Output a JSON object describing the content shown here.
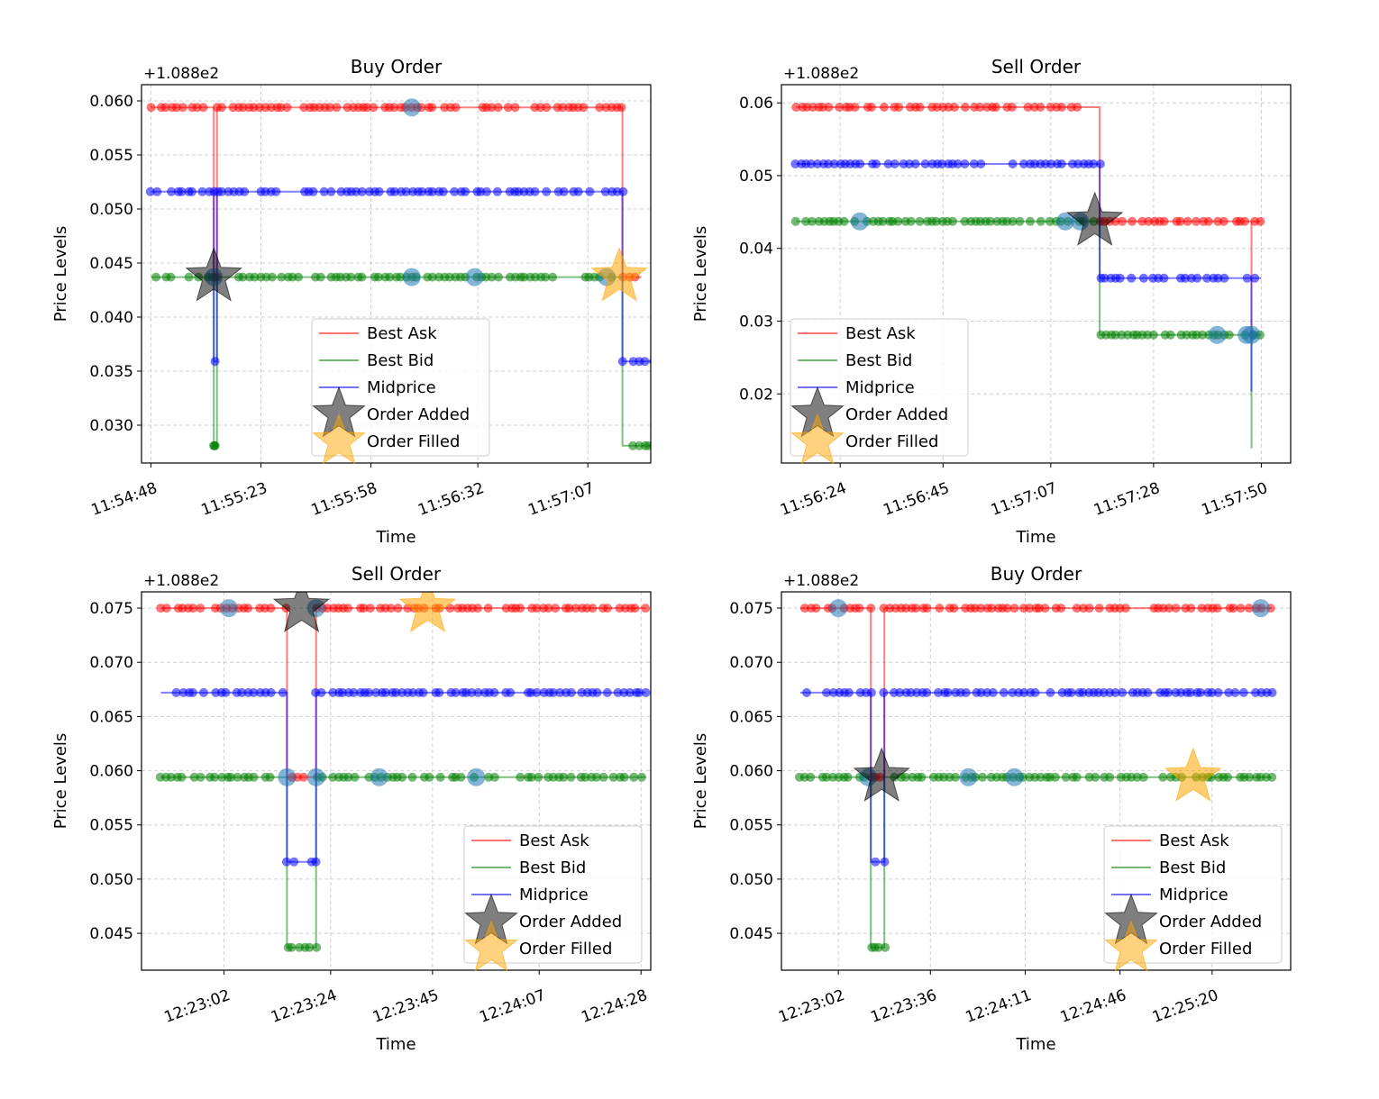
{
  "colors": {
    "ask": "#ff0000",
    "bid": "#008000",
    "mid": "#0000ff",
    "event_marker": "#1f77b4",
    "order_added": "#000000",
    "order_filled": "#ffa500"
  },
  "chart_data": [
    {
      "type": "line",
      "title": "Buy Order",
      "xlabel": "Time",
      "ylabel": "Price Levels",
      "y_offset_label": "+1.088e2",
      "y_offset": 108.8,
      "xlim": [
        "11:54:45",
        "11:57:27"
      ],
      "ylim": [
        0.0265,
        0.0615
      ],
      "xticks": [
        "11:54:48",
        "11:55:23",
        "11:55:58",
        "11:56:32",
        "11:57:07"
      ],
      "yticks": [
        "0.030",
        "0.035",
        "0.040",
        "0.045",
        "0.050",
        "0.055",
        "0.060"
      ],
      "grid": true,
      "legend": {
        "location": "lower-center",
        "entries": [
          "Best Ask",
          "Best Bid",
          "Midprice",
          "Order Added",
          "Order Filled"
        ]
      },
      "series": [
        {
          "name": "Best Ask",
          "points": [
            [
              "11:54:48",
              0.0594
            ],
            [
              "11:55:08",
              0.0594
            ],
            [
              "11:55:08",
              0.0437
            ],
            [
              "11:55:09",
              0.0437
            ],
            [
              "11:55:09",
              0.0594
            ],
            [
              "11:57:18",
              0.0594
            ],
            [
              "11:57:18",
              0.0437
            ],
            [
              "11:57:24",
              0.0437
            ]
          ]
        },
        {
          "name": "Best Bid",
          "points": [
            [
              "11:54:48",
              0.0437
            ],
            [
              "11:55:08",
              0.0437
            ],
            [
              "11:55:08",
              0.0281
            ],
            [
              "11:55:09",
              0.0281
            ],
            [
              "11:55:09",
              0.0437
            ],
            [
              "11:57:18",
              0.0437
            ],
            [
              "11:57:18",
              0.0281
            ],
            [
              "11:57:30",
              0.0281
            ]
          ]
        },
        {
          "name": "Midprice",
          "points": [
            [
              "11:54:48",
              0.0516
            ],
            [
              "11:55:08",
              0.0516
            ],
            [
              "11:55:08",
              0.0359
            ],
            [
              "11:55:09",
              0.0359
            ],
            [
              "11:55:09",
              0.0516
            ],
            [
              "11:57:18",
              0.0516
            ],
            [
              "11:57:18",
              0.0359
            ],
            [
              "11:57:30",
              0.0359
            ]
          ]
        }
      ],
      "order_added": [
        [
          "11:55:08",
          0.0437
        ]
      ],
      "order_filled": [
        [
          "11:57:17",
          0.0437
        ]
      ],
      "event_markers": [
        [
          "11:55:08",
          0.0437
        ],
        [
          "11:56:11",
          0.0594
        ],
        [
          "11:56:11",
          0.0437
        ],
        [
          "11:56:31",
          0.0437
        ],
        [
          "11:57:13",
          0.0437
        ]
      ]
    },
    {
      "type": "line",
      "title": "Sell Order",
      "xlabel": "Time",
      "ylabel": "Price Levels",
      "y_offset_label": "+1.088e2",
      "y_offset": 108.8,
      "xlim": [
        "11:56:12",
        "11:57:56"
      ],
      "ylim": [
        0.0105,
        0.0625
      ],
      "xticks": [
        "11:56:24",
        "11:56:45",
        "11:57:07",
        "11:57:28",
        "11:57:50"
      ],
      "yticks": [
        "0.02",
        "0.03",
        "0.04",
        "0.05",
        "0.06"
      ],
      "grid": true,
      "legend": {
        "location": "lower-left",
        "entries": [
          "Best Ask",
          "Best Bid",
          "Midprice",
          "Order Added",
          "Order Filled"
        ]
      },
      "series": [
        {
          "name": "Best Ask",
          "points": [
            [
              "11:56:15",
              0.0594
            ],
            [
              "11:57:17",
              0.0594
            ],
            [
              "11:57:17",
              0.0437
            ],
            [
              "11:57:48",
              0.0437
            ],
            [
              "11:57:48",
              0.0281
            ],
            [
              "11:57:48",
              0.0437
            ],
            [
              "11:57:50",
              0.0437
            ]
          ]
        },
        {
          "name": "Best Bid",
          "points": [
            [
              "11:56:15",
              0.0437
            ],
            [
              "11:57:17",
              0.0437
            ],
            [
              "11:57:17",
              0.0281
            ],
            [
              "11:57:48",
              0.0281
            ],
            [
              "11:57:48",
              0.0125
            ],
            [
              "11:57:48",
              0.0281
            ],
            [
              "11:57:50",
              0.0281
            ]
          ]
        },
        {
          "name": "Midprice",
          "points": [
            [
              "11:56:15",
              0.0516
            ],
            [
              "11:57:17",
              0.0516
            ],
            [
              "11:57:17",
              0.0359
            ],
            [
              "11:57:48",
              0.0359
            ],
            [
              "11:57:48",
              0.0203
            ],
            [
              "11:57:48",
              0.0359
            ],
            [
              "11:57:50",
              0.0359
            ]
          ]
        }
      ],
      "order_added": [
        [
          "11:57:16",
          0.0437
        ]
      ],
      "order_filled": [],
      "event_markers": [
        [
          "11:56:28",
          0.0437
        ],
        [
          "11:57:10",
          0.0437
        ],
        [
          "11:57:13",
          0.0437
        ],
        [
          "11:57:41",
          0.0281
        ],
        [
          "11:57:47",
          0.0281
        ],
        [
          "11:57:48",
          0.0281
        ]
      ]
    },
    {
      "type": "line",
      "title": "Sell Order",
      "xlabel": "Time",
      "ylabel": "Price Levels",
      "y_offset_label": "+1.088e2",
      "y_offset": 108.8,
      "xlim": [
        "12:22:45",
        "12:24:30"
      ],
      "ylim": [
        0.0416,
        0.0765
      ],
      "xticks": [
        "12:23:02",
        "12:23:24",
        "12:23:45",
        "12:24:07",
        "12:24:28"
      ],
      "yticks": [
        "0.045",
        "0.050",
        "0.055",
        "0.060",
        "0.065",
        "0.070",
        "0.075"
      ],
      "grid": true,
      "legend": {
        "location": "lower-right",
        "entries": [
          "Best Ask",
          "Best Bid",
          "Midprice",
          "Order Added",
          "Order Filled"
        ]
      },
      "series": [
        {
          "name": "Best Ask",
          "points": [
            [
              "12:22:49",
              0.075
            ],
            [
              "12:23:15",
              0.075
            ],
            [
              "12:23:15",
              0.0594
            ],
            [
              "12:23:21",
              0.0594
            ],
            [
              "12:23:21",
              0.075
            ],
            [
              "12:24:29",
              0.075
            ]
          ]
        },
        {
          "name": "Best Bid",
          "points": [
            [
              "12:22:49",
              0.0594
            ],
            [
              "12:23:15",
              0.0594
            ],
            [
              "12:23:15",
              0.0437
            ],
            [
              "12:23:21",
              0.0437
            ],
            [
              "12:23:21",
              0.0594
            ],
            [
              "12:24:29",
              0.0594
            ]
          ]
        },
        {
          "name": "Midprice",
          "points": [
            [
              "12:22:49",
              0.0672
            ],
            [
              "12:23:15",
              0.0672
            ],
            [
              "12:23:15",
              0.0516
            ],
            [
              "12:23:21",
              0.0516
            ],
            [
              "12:23:21",
              0.0672
            ],
            [
              "12:24:29",
              0.0672
            ]
          ]
        }
      ],
      "order_added": [
        [
          "12:23:18",
          0.075
        ]
      ],
      "order_filled": [
        [
          "12:23:44",
          0.075
        ]
      ],
      "event_markers": [
        [
          "12:23:03",
          0.075
        ],
        [
          "12:23:15",
          0.0594
        ],
        [
          "12:23:21",
          0.0594
        ],
        [
          "12:23:34",
          0.0594
        ],
        [
          "12:23:54",
          0.0594
        ],
        [
          "12:23:21",
          0.075
        ]
      ]
    },
    {
      "type": "line",
      "title": "Buy Order",
      "xlabel": "Time",
      "ylabel": "Price Levels",
      "y_offset_label": "+1.088e2",
      "y_offset": 108.8,
      "xlim": [
        "12:22:41",
        "12:25:49"
      ],
      "ylim": [
        0.0416,
        0.0765
      ],
      "xticks": [
        "12:23:02",
        "12:23:36",
        "12:24:11",
        "12:24:46",
        "12:25:20"
      ],
      "yticks": [
        "0.045",
        "0.050",
        "0.055",
        "0.060",
        "0.065",
        "0.070",
        "0.075"
      ],
      "grid": true,
      "legend": {
        "location": "lower-right",
        "entries": [
          "Best Ask",
          "Best Bid",
          "Midprice",
          "Order Added",
          "Order Filled"
        ]
      },
      "series": [
        {
          "name": "Best Ask",
          "points": [
            [
              "12:22:48",
              0.075
            ],
            [
              "12:23:14",
              0.075
            ],
            [
              "12:23:14",
              0.0594
            ],
            [
              "12:23:19",
              0.0594
            ],
            [
              "12:23:19",
              0.075
            ],
            [
              "12:25:42",
              0.075
            ]
          ]
        },
        {
          "name": "Best Bid",
          "points": [
            [
              "12:22:48",
              0.0594
            ],
            [
              "12:23:14",
              0.0594
            ],
            [
              "12:23:14",
              0.0437
            ],
            [
              "12:23:19",
              0.0437
            ],
            [
              "12:23:19",
              0.0594
            ],
            [
              "12:25:42",
              0.0594
            ]
          ]
        },
        {
          "name": "Midprice",
          "points": [
            [
              "12:22:48",
              0.0672
            ],
            [
              "12:23:14",
              0.0672
            ],
            [
              "12:23:14",
              0.0516
            ],
            [
              "12:23:19",
              0.0516
            ],
            [
              "12:23:19",
              0.0672
            ],
            [
              "12:25:42",
              0.0672
            ]
          ]
        }
      ],
      "order_added": [
        [
          "12:23:18",
          0.0594
        ]
      ],
      "order_filled": [
        [
          "12:25:13",
          0.0594
        ]
      ],
      "event_markers": [
        [
          "12:23:02",
          0.075
        ],
        [
          "12:23:13",
          0.0594
        ],
        [
          "12:23:50",
          0.0594
        ],
        [
          "12:24:07",
          0.0594
        ],
        [
          "12:25:38",
          0.075
        ]
      ]
    }
  ]
}
